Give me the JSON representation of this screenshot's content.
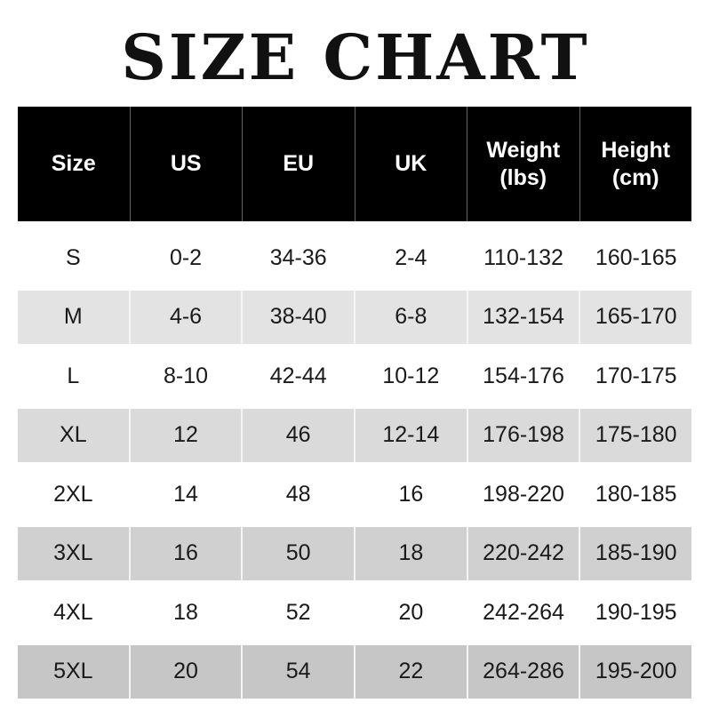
{
  "title": "SIZE CHART",
  "headers": [
    "Size",
    "US",
    "EU",
    "UK",
    "Weight\n(lbs)",
    "Height\n(cm)"
  ],
  "rows": [
    {
      "cells": [
        "S",
        "0-2",
        "34-36",
        "2-4",
        "110-132",
        "160-165"
      ],
      "bg": "#ffffff"
    },
    {
      "cells": [
        "M",
        "4-6",
        "38-40",
        "6-8",
        "132-154",
        "165-170"
      ],
      "bg": "#e3e3e3"
    },
    {
      "cells": [
        "L",
        "8-10",
        "42-44",
        "10-12",
        "154-176",
        "170-175"
      ],
      "bg": "#ffffff"
    },
    {
      "cells": [
        "XL",
        "12",
        "46",
        "12-14",
        "176-198",
        "175-180"
      ],
      "bg": "#dadada"
    },
    {
      "cells": [
        "2XL",
        "14",
        "48",
        "16",
        "198-220",
        "180-185"
      ],
      "bg": "#ffffff"
    },
    {
      "cells": [
        "3XL",
        "16",
        "50",
        "18",
        "220-242",
        "185-190"
      ],
      "bg": "#d0d0d0"
    },
    {
      "cells": [
        "4XL",
        "18",
        "52",
        "20",
        "242-264",
        "190-195"
      ],
      "bg": "#ffffff"
    },
    {
      "cells": [
        "5XL",
        "20",
        "54",
        "22",
        "264-286",
        "195-200"
      ],
      "bg": "#c6c6c6"
    }
  ],
  "colors": {
    "header_bg": "#000000",
    "header_text": "#ffffff"
  }
}
